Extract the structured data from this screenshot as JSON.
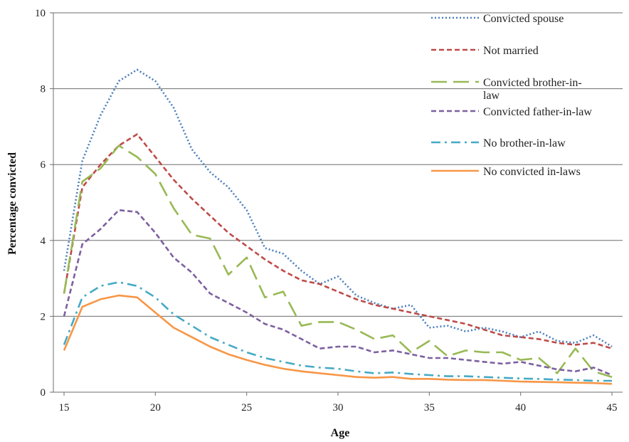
{
  "chart_data": {
    "type": "line",
    "title": "",
    "xlabel": "Age",
    "ylabel": "Percentage convicted",
    "xlim": [
      15,
      45
    ],
    "ylim": [
      0,
      10
    ],
    "xticks": [
      15,
      20,
      25,
      30,
      35,
      40,
      45
    ],
    "yticks": [
      0,
      2,
      4,
      6,
      8,
      10
    ],
    "grid": "horizontal",
    "legend_position": "top-right",
    "x": [
      15,
      16,
      17,
      18,
      19,
      20,
      21,
      22,
      23,
      24,
      25,
      26,
      27,
      28,
      29,
      30,
      31,
      32,
      33,
      34,
      35,
      36,
      37,
      38,
      39,
      40,
      41,
      42,
      43,
      44,
      45
    ],
    "series": [
      {
        "name": "Convicted spouse",
        "color": "#4a7ebb",
        "dash": "dotted",
        "values": [
          3.2,
          6.1,
          7.3,
          8.2,
          8.5,
          8.2,
          7.5,
          6.4,
          5.8,
          5.4,
          4.8,
          3.8,
          3.65,
          3.2,
          2.85,
          3.05,
          2.55,
          2.35,
          2.2,
          2.3,
          1.7,
          1.75,
          1.6,
          1.7,
          1.6,
          1.45,
          1.6,
          1.35,
          1.3,
          1.5,
          1.2
        ]
      },
      {
        "name": "Not married",
        "color": "#be4b48",
        "dash": "short-dash",
        "values": [
          2.6,
          5.4,
          6.0,
          6.5,
          6.8,
          6.2,
          5.6,
          5.1,
          4.65,
          4.2,
          3.85,
          3.5,
          3.2,
          2.95,
          2.85,
          2.65,
          2.45,
          2.3,
          2.2,
          2.1,
          2.0,
          1.9,
          1.8,
          1.65,
          1.5,
          1.45,
          1.4,
          1.3,
          1.25,
          1.3,
          1.15
        ]
      },
      {
        "name": "Convicted brother-in-law",
        "color": "#98b954",
        "dash": "long-dash",
        "values": [
          2.6,
          5.55,
          5.9,
          6.5,
          6.2,
          5.75,
          4.85,
          4.15,
          4.05,
          3.1,
          3.55,
          2.5,
          2.65,
          1.75,
          1.85,
          1.85,
          1.65,
          1.4,
          1.5,
          1.05,
          1.35,
          0.95,
          1.1,
          1.05,
          1.05,
          0.85,
          0.9,
          0.5,
          1.15,
          0.55,
          0.4
        ]
      },
      {
        "name": "Convicted father-in-law",
        "color": "#7d60a0",
        "dash": "short-dash",
        "values": [
          2.0,
          3.9,
          4.3,
          4.8,
          4.75,
          4.2,
          3.55,
          3.15,
          2.6,
          2.35,
          2.1,
          1.8,
          1.65,
          1.4,
          1.15,
          1.2,
          1.2,
          1.05,
          1.1,
          1.0,
          0.9,
          0.9,
          0.85,
          0.8,
          0.75,
          0.8,
          0.7,
          0.6,
          0.55,
          0.65,
          0.45
        ]
      },
      {
        "name": "No brother-in-law",
        "color": "#46aac5",
        "dash": "dash-dot",
        "values": [
          1.25,
          2.5,
          2.8,
          2.9,
          2.8,
          2.5,
          2.05,
          1.75,
          1.45,
          1.25,
          1.05,
          0.9,
          0.8,
          0.7,
          0.65,
          0.62,
          0.55,
          0.5,
          0.52,
          0.48,
          0.45,
          0.42,
          0.42,
          0.4,
          0.38,
          0.36,
          0.35,
          0.33,
          0.32,
          0.3,
          0.3
        ]
      },
      {
        "name": "No convicted in-laws",
        "color": "#f79646",
        "dash": "solid",
        "values": [
          1.1,
          2.25,
          2.45,
          2.55,
          2.5,
          2.1,
          1.7,
          1.45,
          1.2,
          1.0,
          0.85,
          0.72,
          0.62,
          0.55,
          0.5,
          0.45,
          0.4,
          0.38,
          0.4,
          0.35,
          0.35,
          0.33,
          0.32,
          0.32,
          0.3,
          0.28,
          0.27,
          0.26,
          0.25,
          0.24,
          0.22
        ]
      }
    ],
    "legend": [
      {
        "lines": [
          "Convicted spouse"
        ]
      },
      {
        "lines": [
          "Not married"
        ]
      },
      {
        "lines": [
          "Convicted brother-in-",
          "law"
        ]
      },
      {
        "lines": [
          "Convicted father-in-law"
        ]
      },
      {
        "lines": [
          "No brother-in-law"
        ]
      },
      {
        "lines": [
          "No convicted in-laws"
        ]
      }
    ]
  }
}
